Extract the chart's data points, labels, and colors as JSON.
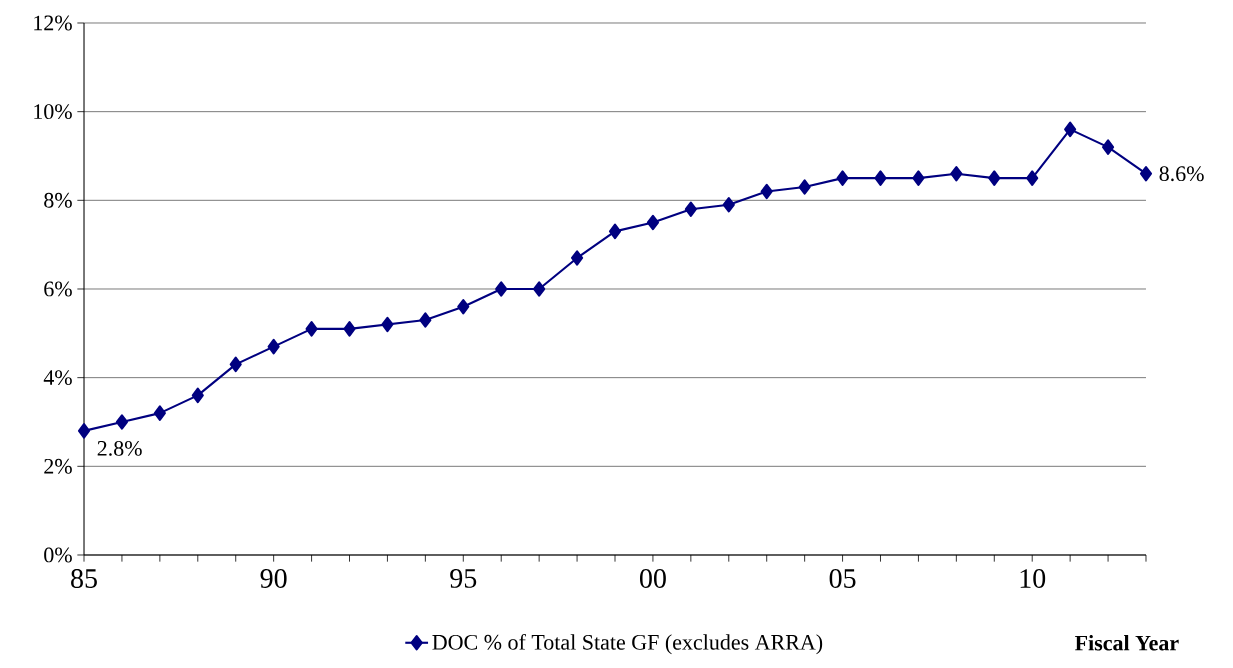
{
  "chart_data": {
    "type": "line",
    "xlabel": "Fiscal Year",
    "x": [
      1985,
      1986,
      1987,
      1988,
      1989,
      1990,
      1991,
      1992,
      1993,
      1994,
      1995,
      1996,
      1997,
      1998,
      1999,
      2000,
      2001,
      2002,
      2003,
      2004,
      2005,
      2006,
      2007,
      2008,
      2009,
      2010,
      2011,
      2012,
      2013
    ],
    "series": [
      {
        "name": "DOC % of Total State GF (excludes ARRA)",
        "color": "#000080",
        "values": [
          2.8,
          3.0,
          3.2,
          3.6,
          4.3,
          4.7,
          5.1,
          5.1,
          5.2,
          5.3,
          5.6,
          6.0,
          6.0,
          6.7,
          7.3,
          7.5,
          7.8,
          7.9,
          8.2,
          8.3,
          8.5,
          8.5,
          8.5,
          8.6,
          8.5,
          8.5,
          9.6,
          9.2,
          8.6
        ],
        "value_labels": [
          "2.8%",
          null,
          null,
          null,
          null,
          null,
          null,
          null,
          null,
          null,
          null,
          null,
          null,
          null,
          null,
          null,
          null,
          null,
          null,
          null,
          null,
          null,
          null,
          null,
          null,
          null,
          null,
          null,
          "8.6%"
        ]
      }
    ],
    "xlim": [
      1985,
      2013
    ],
    "xticks": [
      {
        "value": 1985,
        "label": "85"
      },
      {
        "value": 1986,
        "label": null
      },
      {
        "value": 1987,
        "label": null
      },
      {
        "value": 1988,
        "label": null
      },
      {
        "value": 1989,
        "label": null
      },
      {
        "value": 1990,
        "label": "90"
      },
      {
        "value": 1991,
        "label": null
      },
      {
        "value": 1992,
        "label": null
      },
      {
        "value": 1993,
        "label": null
      },
      {
        "value": 1994,
        "label": null
      },
      {
        "value": 1995,
        "label": "95"
      },
      {
        "value": 1996,
        "label": null
      },
      {
        "value": 1997,
        "label": null
      },
      {
        "value": 1998,
        "label": null
      },
      {
        "value": 1999,
        "label": null
      },
      {
        "value": 2000,
        "label": "00"
      },
      {
        "value": 2001,
        "label": null
      },
      {
        "value": 2002,
        "label": null
      },
      {
        "value": 2003,
        "label": null
      },
      {
        "value": 2004,
        "label": null
      },
      {
        "value": 2005,
        "label": "05"
      },
      {
        "value": 2006,
        "label": null
      },
      {
        "value": 2007,
        "label": null
      },
      {
        "value": 2008,
        "label": null
      },
      {
        "value": 2009,
        "label": null
      },
      {
        "value": 2010,
        "label": "10"
      },
      {
        "value": 2011,
        "label": null
      },
      {
        "value": 2012,
        "label": null
      },
      {
        "value": 2013,
        "label": null
      }
    ],
    "ylim": [
      0,
      12
    ],
    "yticks": [
      {
        "value": 0,
        "label": "0%"
      },
      {
        "value": 2,
        "label": "2%"
      },
      {
        "value": 4,
        "label": "4%"
      },
      {
        "value": 6,
        "label": "6%"
      },
      {
        "value": 8,
        "label": "8%"
      },
      {
        "value": 10,
        "label": "10%"
      },
      {
        "value": 12,
        "label": "12%"
      }
    ],
    "grid": "y",
    "legend": "bottom",
    "marker": "diamond",
    "line_style": "solid"
  }
}
